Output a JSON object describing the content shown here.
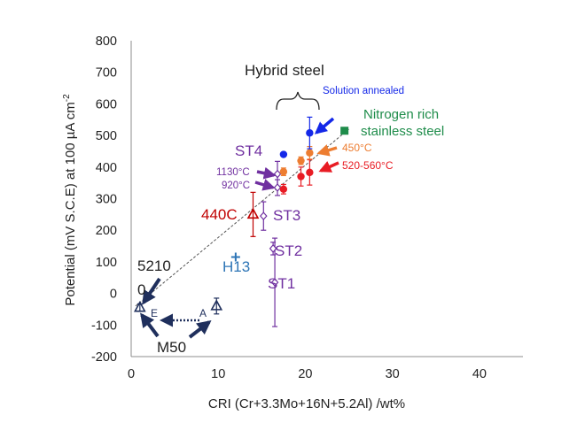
{
  "chart_data": {
    "type": "scatter",
    "title": "",
    "xlabel": "CRI (Cr+3.3Mo+16N+5.2Al) /wt%",
    "ylabel": "Potential (mV S.C.E) at 100 µA cm",
    "ylabel_superscript": "-2",
    "xlim": [
      0,
      45
    ],
    "ylim": [
      -200,
      800
    ],
    "x_ticks": [
      0,
      10,
      20,
      30,
      40
    ],
    "y_ticks": [
      -200,
      -100,
      0,
      100,
      200,
      300,
      400,
      500,
      600,
      700,
      800
    ],
    "grid": false,
    "trend_line": {
      "style": "dashed",
      "color": "#555555",
      "from": [
        0.5,
        -40
      ],
      "to": [
        25,
        520
      ]
    },
    "series": [
      {
        "name": "52100",
        "color": "#1f2f5c",
        "marker": "triangle-open",
        "points": [
          {
            "x": 1,
            "y": -45,
            "err": 12
          }
        ]
      },
      {
        "name": "M50",
        "color": "#1f2f5c",
        "marker": "triangle-open",
        "points": [
          {
            "x": 9.8,
            "y": -40,
            "err": 25
          }
        ]
      },
      {
        "name": "H13",
        "color": "#2e75b6",
        "marker": "plus",
        "points": [
          {
            "x": 12,
            "y": 115,
            "err": 0
          }
        ]
      },
      {
        "name": "440C",
        "color": "#c00000",
        "marker": "triangle-open",
        "points": [
          {
            "x": 14,
            "y": 250,
            "err": 70
          }
        ]
      },
      {
        "name": "ST1",
        "color": "#7030a0",
        "marker": "diamond-open",
        "points": [
          {
            "x": 16.5,
            "y": 35,
            "err": 140
          }
        ]
      },
      {
        "name": "ST2",
        "color": "#7030a0",
        "marker": "diamond-open",
        "points": [
          {
            "x": 16.3,
            "y": 142,
            "err": 20
          }
        ]
      },
      {
        "name": "ST3",
        "color": "#7030a0",
        "marker": "diamond-open",
        "points": [
          {
            "x": 15.2,
            "y": 245,
            "err": 45
          }
        ]
      },
      {
        "name": "ST4",
        "color": "#7030a0",
        "marker": "diamond-open",
        "points": [
          {
            "x": 16.8,
            "y": 378,
            "err": 40
          },
          {
            "x": 16.8,
            "y": 335,
            "err": 25
          }
        ]
      },
      {
        "name": "Hybrid steel 520-560°C",
        "color": "#e81c24",
        "marker": "circle",
        "points": [
          {
            "x": 17.5,
            "y": 330,
            "err": 15
          },
          {
            "x": 19.5,
            "y": 370,
            "err": 30
          },
          {
            "x": 20.5,
            "y": 383,
            "err": 40
          }
        ]
      },
      {
        "name": "Hybrid steel 450°C",
        "color": "#ed7d31",
        "marker": "circle",
        "points": [
          {
            "x": 17.5,
            "y": 385,
            "err": 12
          },
          {
            "x": 19.5,
            "y": 420,
            "err": 12
          },
          {
            "x": 20.5,
            "y": 445,
            "err": 20
          }
        ]
      },
      {
        "name": "Hybrid steel solution annealed",
        "color": "#1428e8",
        "marker": "circle",
        "points": [
          {
            "x": 17.5,
            "y": 440,
            "err": 0
          },
          {
            "x": 20.5,
            "y": 508,
            "err": 50
          }
        ]
      },
      {
        "name": "Nitrogen rich stainless steel",
        "color": "#1e8c4a",
        "marker": "square",
        "points": [
          {
            "x": 24.5,
            "y": 515,
            "err": 0
          }
        ]
      }
    ],
    "annotations": {
      "hybrid_steel": "Hybrid steel",
      "solution_annealed": "Solution annealed",
      "nitrogen_rich_1": "Nitrogen rich",
      "nitrogen_rich_2": "stainless steel",
      "t450": "450°C",
      "t520": "520-560°C",
      "st4": "ST4",
      "t1130": "1130°C",
      "t920": "920°C",
      "c440": "440C",
      "st3": "ST3",
      "st2": "ST2",
      "st1": "ST1",
      "h13": "H13",
      "s5210": "5210",
      "s0": "0",
      "e_label": "E",
      "a_label": "A",
      "m50": "M50"
    },
    "colors": {
      "navy": "#1f2f5c",
      "purple": "#7030a0",
      "dark_red": "#c00000",
      "red": "#e81c24",
      "orange": "#ed7d31",
      "blue": "#1428e8",
      "h13_blue": "#2e75b6",
      "green": "#1e8c4a",
      "text": "#222222"
    }
  }
}
